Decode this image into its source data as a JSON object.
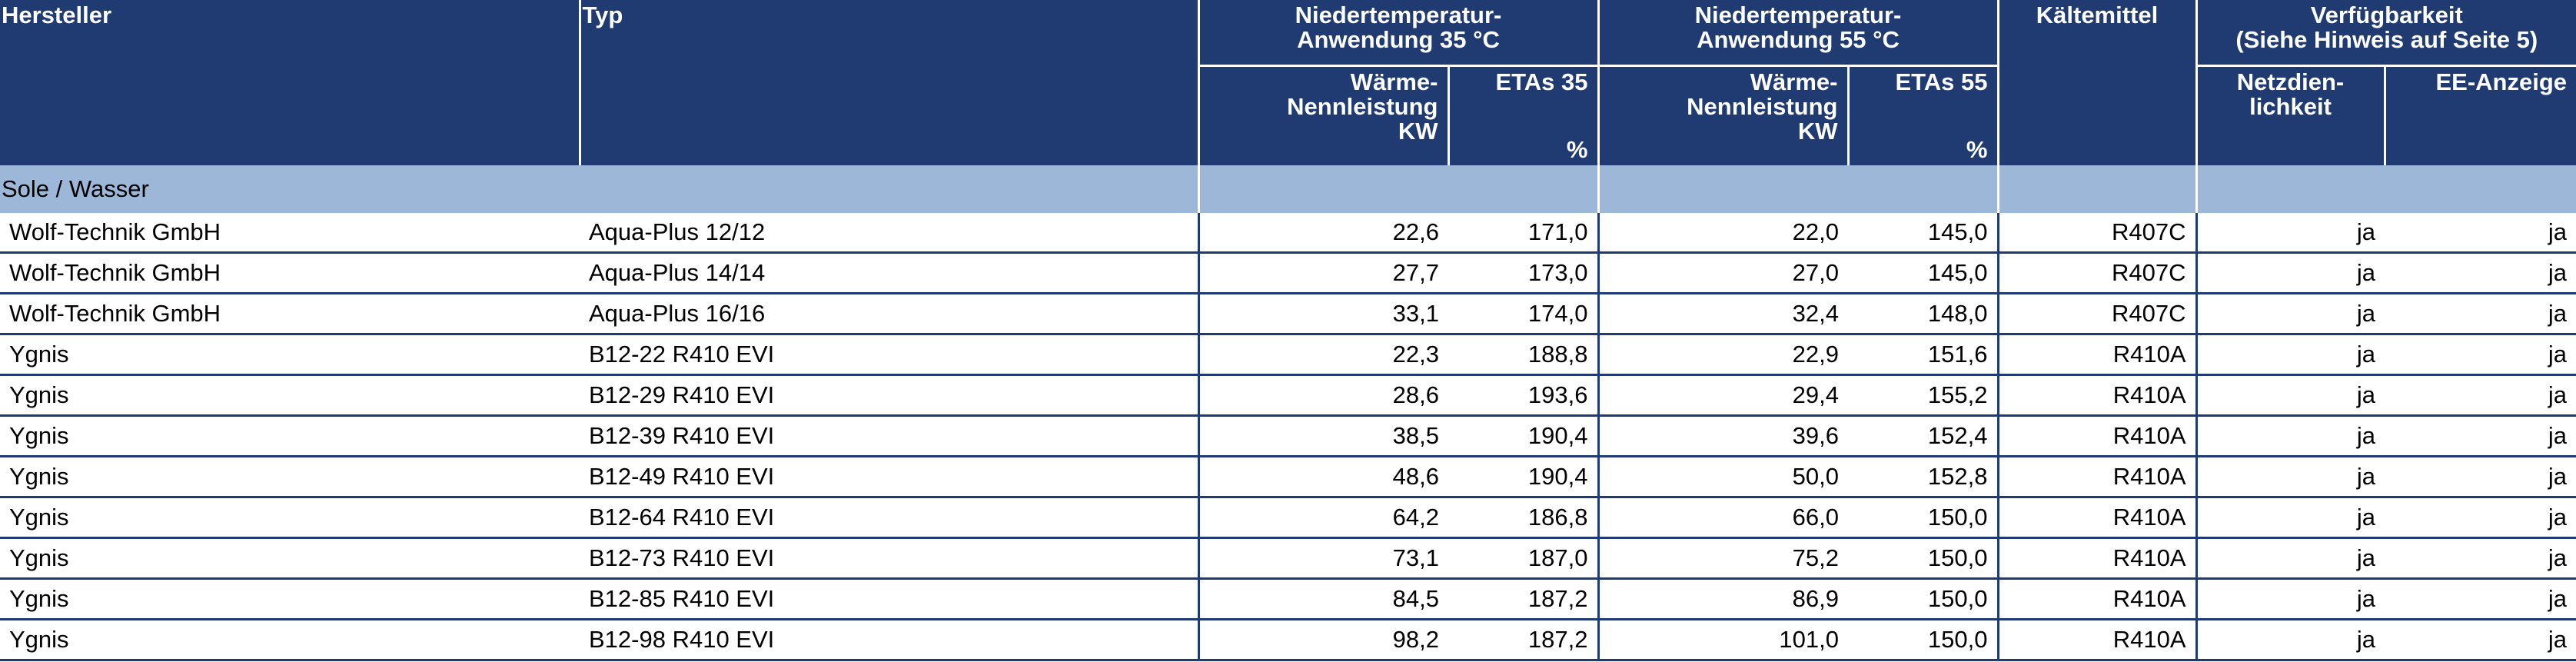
{
  "header": {
    "hersteller": "Hersteller",
    "typ": "Typ",
    "nt35_line1": "Niedertemperatur-",
    "nt35_line2": "Anwendung 35 °C",
    "nt55_line1": "Niedertemperatur-",
    "nt55_line2": "Anwendung 55 °C",
    "kaeltemittel": "Kältemittel",
    "verf_line1": "Verfügbarkeit",
    "verf_line2": "(Siehe Hinweis auf Seite 5)",
    "waerme_line1": "Wärme-",
    "waerme_line2": "Nennleistung",
    "waerme_unit": "KW",
    "etas35": "ETAs 35",
    "etas55": "ETAs 55",
    "percent": "%",
    "netz_line1": "Netzdien-",
    "netz_line2": "lichkeit",
    "ee_anzeige": "EE-Anzeige"
  },
  "category": "Sole / Wasser",
  "rows": [
    {
      "hersteller": "Wolf-Technik GmbH",
      "typ": "Aqua-Plus 12/12",
      "w35": "22,6",
      "e35": "171,0",
      "w55": "22,0",
      "e55": "145,0",
      "kaelte": "R407C",
      "netz": "ja",
      "ee": "ja"
    },
    {
      "hersteller": "Wolf-Technik GmbH",
      "typ": "Aqua-Plus 14/14",
      "w35": "27,7",
      "e35": "173,0",
      "w55": "27,0",
      "e55": "145,0",
      "kaelte": "R407C",
      "netz": "ja",
      "ee": "ja"
    },
    {
      "hersteller": "Wolf-Technik GmbH",
      "typ": "Aqua-Plus 16/16",
      "w35": "33,1",
      "e35": "174,0",
      "w55": "32,4",
      "e55": "148,0",
      "kaelte": "R407C",
      "netz": "ja",
      "ee": "ja"
    },
    {
      "hersteller": "Ygnis",
      "typ": "B12-22 R410 EVI",
      "w35": "22,3",
      "e35": "188,8",
      "w55": "22,9",
      "e55": "151,6",
      "kaelte": "R410A",
      "netz": "ja",
      "ee": "ja"
    },
    {
      "hersteller": "Ygnis",
      "typ": "B12-29 R410 EVI",
      "w35": "28,6",
      "e35": "193,6",
      "w55": "29,4",
      "e55": "155,2",
      "kaelte": "R410A",
      "netz": "ja",
      "ee": "ja"
    },
    {
      "hersteller": "Ygnis",
      "typ": "B12-39 R410 EVI",
      "w35": "38,5",
      "e35": "190,4",
      "w55": "39,6",
      "e55": "152,4",
      "kaelte": "R410A",
      "netz": "ja",
      "ee": "ja"
    },
    {
      "hersteller": "Ygnis",
      "typ": "B12-49 R410 EVI",
      "w35": "48,6",
      "e35": "190,4",
      "w55": "50,0",
      "e55": "152,8",
      "kaelte": "R410A",
      "netz": "ja",
      "ee": "ja"
    },
    {
      "hersteller": "Ygnis",
      "typ": "B12-64 R410 EVI",
      "w35": "64,2",
      "e35": "186,8",
      "w55": "66,0",
      "e55": "150,0",
      "kaelte": "R410A",
      "netz": "ja",
      "ee": "ja"
    },
    {
      "hersteller": "Ygnis",
      "typ": "B12-73 R410 EVI",
      "w35": "73,1",
      "e35": "187,0",
      "w55": "75,2",
      "e55": "150,0",
      "kaelte": "R410A",
      "netz": "ja",
      "ee": "ja"
    },
    {
      "hersteller": "Ygnis",
      "typ": "B12-85 R410 EVI",
      "w35": "84,5",
      "e35": "187,2",
      "w55": "86,9",
      "e55": "150,0",
      "kaelte": "R410A",
      "netz": "ja",
      "ee": "ja"
    },
    {
      "hersteller": "Ygnis",
      "typ": "B12-98 R410 EVI",
      "w35": "98,2",
      "e35": "187,2",
      "w55": "101,0",
      "e55": "150,0",
      "kaelte": "R410A",
      "netz": "ja",
      "ee": "ja"
    }
  ]
}
